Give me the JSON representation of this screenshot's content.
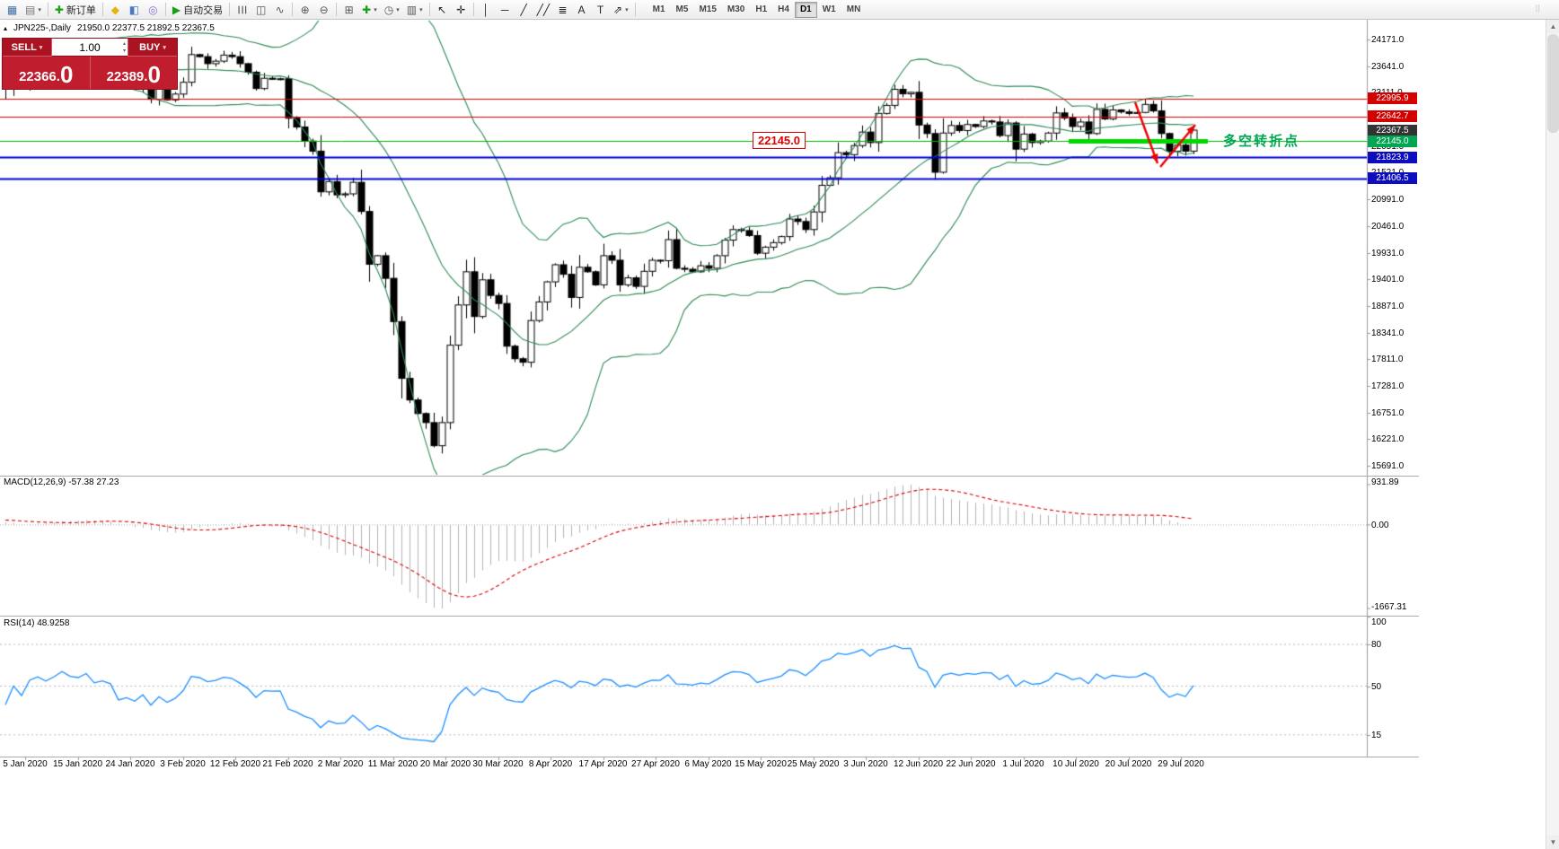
{
  "toolbar": {
    "caret_glyph": "▾",
    "groups": [
      {
        "items": [
          {
            "name": "new-chart",
            "glyph": "▦",
            "color": "#3a6ea5"
          },
          {
            "name": "profiles",
            "glyph": "▤",
            "color": "#777777",
            "caret": true
          }
        ]
      },
      {
        "items": [
          {
            "name": "new-order",
            "glyph": "✚",
            "color": "#18a018",
            "label": "新订单"
          }
        ]
      },
      {
        "items": [
          {
            "name": "metaeditor",
            "glyph": "◆",
            "color": "#e3b505"
          },
          {
            "name": "data-window",
            "glyph": "◧",
            "color": "#4a78c8"
          },
          {
            "name": "navigator",
            "glyph": "◎",
            "color": "#8a6ad0"
          }
        ]
      },
      {
        "items": [
          {
            "name": "autotrading",
            "glyph": "▶",
            "color": "#18a018",
            "label": "自动交易"
          }
        ]
      },
      {
        "items": [
          {
            "name": "bar-chart-mode",
            "glyph": "☰",
            "color": "#555555",
            "rotate": true
          },
          {
            "name": "candlestick-mode",
            "glyph": "◫",
            "color": "#555555"
          },
          {
            "name": "line-chart-mode",
            "glyph": "∿",
            "color": "#555555"
          }
        ]
      },
      {
        "items": [
          {
            "name": "zoom-in",
            "glyph": "⊕",
            "color": "#555555"
          },
          {
            "name": "zoom-out",
            "glyph": "⊖",
            "color": "#555555"
          }
        ]
      },
      {
        "items": [
          {
            "name": "tile-windows",
            "glyph": "⊞",
            "color": "#555555"
          },
          {
            "name": "indicators",
            "glyph": "✚",
            "color": "#18a018",
            "caret": true
          },
          {
            "name": "periods",
            "glyph": "◷",
            "color": "#555555",
            "caret": true
          },
          {
            "name": "templates",
            "glyph": "▥",
            "color": "#555555",
            "caret": true
          }
        ]
      },
      {
        "items": [
          {
            "name": "cursor",
            "glyph": "↖",
            "color": "#222222"
          },
          {
            "name": "crosshair",
            "glyph": "✛",
            "color": "#222222"
          }
        ]
      },
      {
        "items": [
          {
            "name": "vertical-line-tool",
            "glyph": "│",
            "color": "#222222"
          },
          {
            "name": "horizontal-line-tool",
            "glyph": "─",
            "color": "#222222"
          },
          {
            "name": "trendline-tool",
            "glyph": "╱",
            "color": "#222222"
          },
          {
            "name": "channel-tool",
            "glyph": "╱╱",
            "color": "#222222"
          },
          {
            "name": "fibonacci-tool",
            "glyph": "≣",
            "color": "#222222"
          },
          {
            "name": "text-tool",
            "glyph": "A",
            "color": "#222222"
          },
          {
            "name": "label-tool",
            "glyph": "T",
            "color": "#222222"
          },
          {
            "name": "arrows-tool",
            "glyph": "⇗",
            "color": "#222222",
            "caret": true
          }
        ]
      }
    ],
    "timeframes": [
      {
        "name": "M1"
      },
      {
        "name": "M5"
      },
      {
        "name": "M15"
      },
      {
        "name": "M30"
      },
      {
        "name": "H1"
      },
      {
        "name": "H4"
      },
      {
        "name": "D1",
        "active": true
      },
      {
        "name": "W1"
      },
      {
        "name": "MN"
      }
    ]
  },
  "chart": {
    "collapse_glyph": "▴",
    "symbol": "JPN225-,Daily",
    "ohlc": "21950.0 22377.5 21892.5 22367.5"
  },
  "trade_panel": {
    "sell_label": "SELL",
    "buy_label": "BUY",
    "volume": "1.00",
    "spin_up": "▴",
    "spin_down": "▾",
    "sell_price_pre": "22366.",
    "sell_price_big": "0",
    "buy_price_pre": "22389.",
    "buy_price_big": "0",
    "panel_color": "#c01e2e",
    "button_color": "#a91322"
  },
  "annotations": {
    "price_callout": "22145.0",
    "callout_color": "#e00000",
    "turning_point_text": "多空转折点",
    "turning_point_color": "#00a651",
    "arrow_color": "#ee0000",
    "segment_color": "#00d800"
  },
  "price_axis": {
    "min": 15691.0,
    "step": 530.0,
    "count": 17,
    "labels": [
      {
        "text": "22995.9",
        "price": 22995.9,
        "bg": "#d40000"
      },
      {
        "text": "22642.7",
        "price": 22642.7,
        "bg": "#d40000"
      },
      {
        "text": "22367.5",
        "price": 22367.5,
        "bg": "#333333"
      },
      {
        "text": "22145.0",
        "price": 22145.0,
        "bg": "#00a651"
      },
      {
        "text": "21823.9",
        "price": 21823.9,
        "bg": "#0d0dbf"
      },
      {
        "text": "21406.5",
        "price": 21406.5,
        "bg": "#0d0dbf"
      }
    ]
  },
  "levels": [
    {
      "price": 22995.9,
      "color": "#e00000",
      "width": 1
    },
    {
      "price": 22642.7,
      "color": "#e00000",
      "width": 1
    },
    {
      "price": 22145.0,
      "color": "#00b300",
      "width": 1
    },
    {
      "price": 21823.9,
      "color": "#0000dd",
      "width": 2
    },
    {
      "price": 21406.5,
      "color": "#0000dd",
      "width": 2
    }
  ],
  "macd": {
    "label": "MACD(12,26,9) -57.38 27.23",
    "axis_max": "931.89",
    "axis_zero": "0.00",
    "axis_min": "-1667.31",
    "hist_color": "#b4b4b4",
    "signal_color": "#d80000"
  },
  "rsi": {
    "label": "RSI(14) 48.9258",
    "axis": [
      100,
      80,
      50,
      15
    ],
    "levels": [
      80,
      50,
      15
    ],
    "line_color": "#1e90ff"
  },
  "dates": [
    "5 Jan 2020",
    "15 Jan 2020",
    "24 Jan 2020",
    "3 Feb 2020",
    "12 Feb 2020",
    "21 Feb 2020",
    "2 Mar 2020",
    "11 Mar 2020",
    "20 Mar 2020",
    "30 Mar 2020",
    "8 Apr 2020",
    "17 Apr 2020",
    "27 Apr 2020",
    "6 May 2020",
    "15 May 2020",
    "25 May 2020",
    "3 Jun 2020",
    "12 Jun 2020",
    "22 Jun 2020",
    "1 Jul 2020",
    "10 Jul 2020",
    "20 Jul 2020",
    "29 Jul 2020"
  ],
  "chart_data": {
    "type": "candlestick",
    "symbol": "JPN225",
    "timeframe": "Daily",
    "y_range": [
      15691.0,
      24171.0
    ],
    "last_ohlc": [
      21950.0,
      22377.5,
      21892.5,
      22367.5
    ],
    "overlays": {
      "bollinger": {
        "period": 20,
        "deviation": 2
      },
      "macd": [
        12,
        26,
        9
      ],
      "rsi": 14
    },
    "pre": [
      23350,
      23450,
      23520,
      23420,
      23380,
      23300,
      23410,
      23500,
      23580,
      23650,
      23720,
      23680,
      23600,
      23650,
      23740,
      23800,
      23850,
      23790,
      23820,
      23760,
      23700,
      23780,
      23840,
      23830,
      23870
    ],
    "closes": [
      23205,
      23575,
      23320,
      23740,
      23850,
      23740,
      23870,
      24060,
      23940,
      23910,
      24040,
      23810,
      23865,
      23795,
      23290,
      23345,
      23220,
      23380,
      22980,
      23210,
      22970,
      23085,
      23320,
      23870,
      23830,
      23690,
      23740,
      23860,
      23830,
      23690,
      23520,
      23195,
      23400,
      23380,
      23390,
      22605,
      22430,
      22150,
      21950,
      21140,
      21345,
      21080,
      21100,
      21330,
      20750,
      19700,
      19870,
      19420,
      18560,
      17430,
      17000,
      16730,
      16550,
      16090,
      16550,
      18090,
      18890,
      19550,
      18660,
      19390,
      19080,
      18920,
      18070,
      17820,
      17750,
      18580,
      18950,
      19350,
      19690,
      19500,
      19040,
      19640,
      19550,
      19290,
      19870,
      19780,
      19290,
      19430,
      19260,
      19560,
      19780,
      19770,
      20190,
      19620,
      19600,
      19550,
      19670,
      19620,
      19870,
      20180,
      20390,
      20370,
      20270,
      19920,
      20040,
      20130,
      20250,
      20600,
      20550,
      20390,
      20740,
      21270,
      21420,
      21920,
      21880,
      22060,
      22330,
      22120,
      22700,
      22860,
      23180,
      23090,
      23120,
      22470,
      22300,
      21530,
      22310,
      22460,
      22360,
      22480,
      22440,
      22550,
      22530,
      22260,
      22510,
      21990,
      22290,
      22120,
      22150,
      22310,
      22710,
      22610,
      22440,
      22530,
      22300,
      22780,
      22590,
      22770,
      22730,
      22700,
      22720,
      22880,
      22750,
      22300,
      21950,
      22070,
      21950,
      22367.5
    ]
  }
}
